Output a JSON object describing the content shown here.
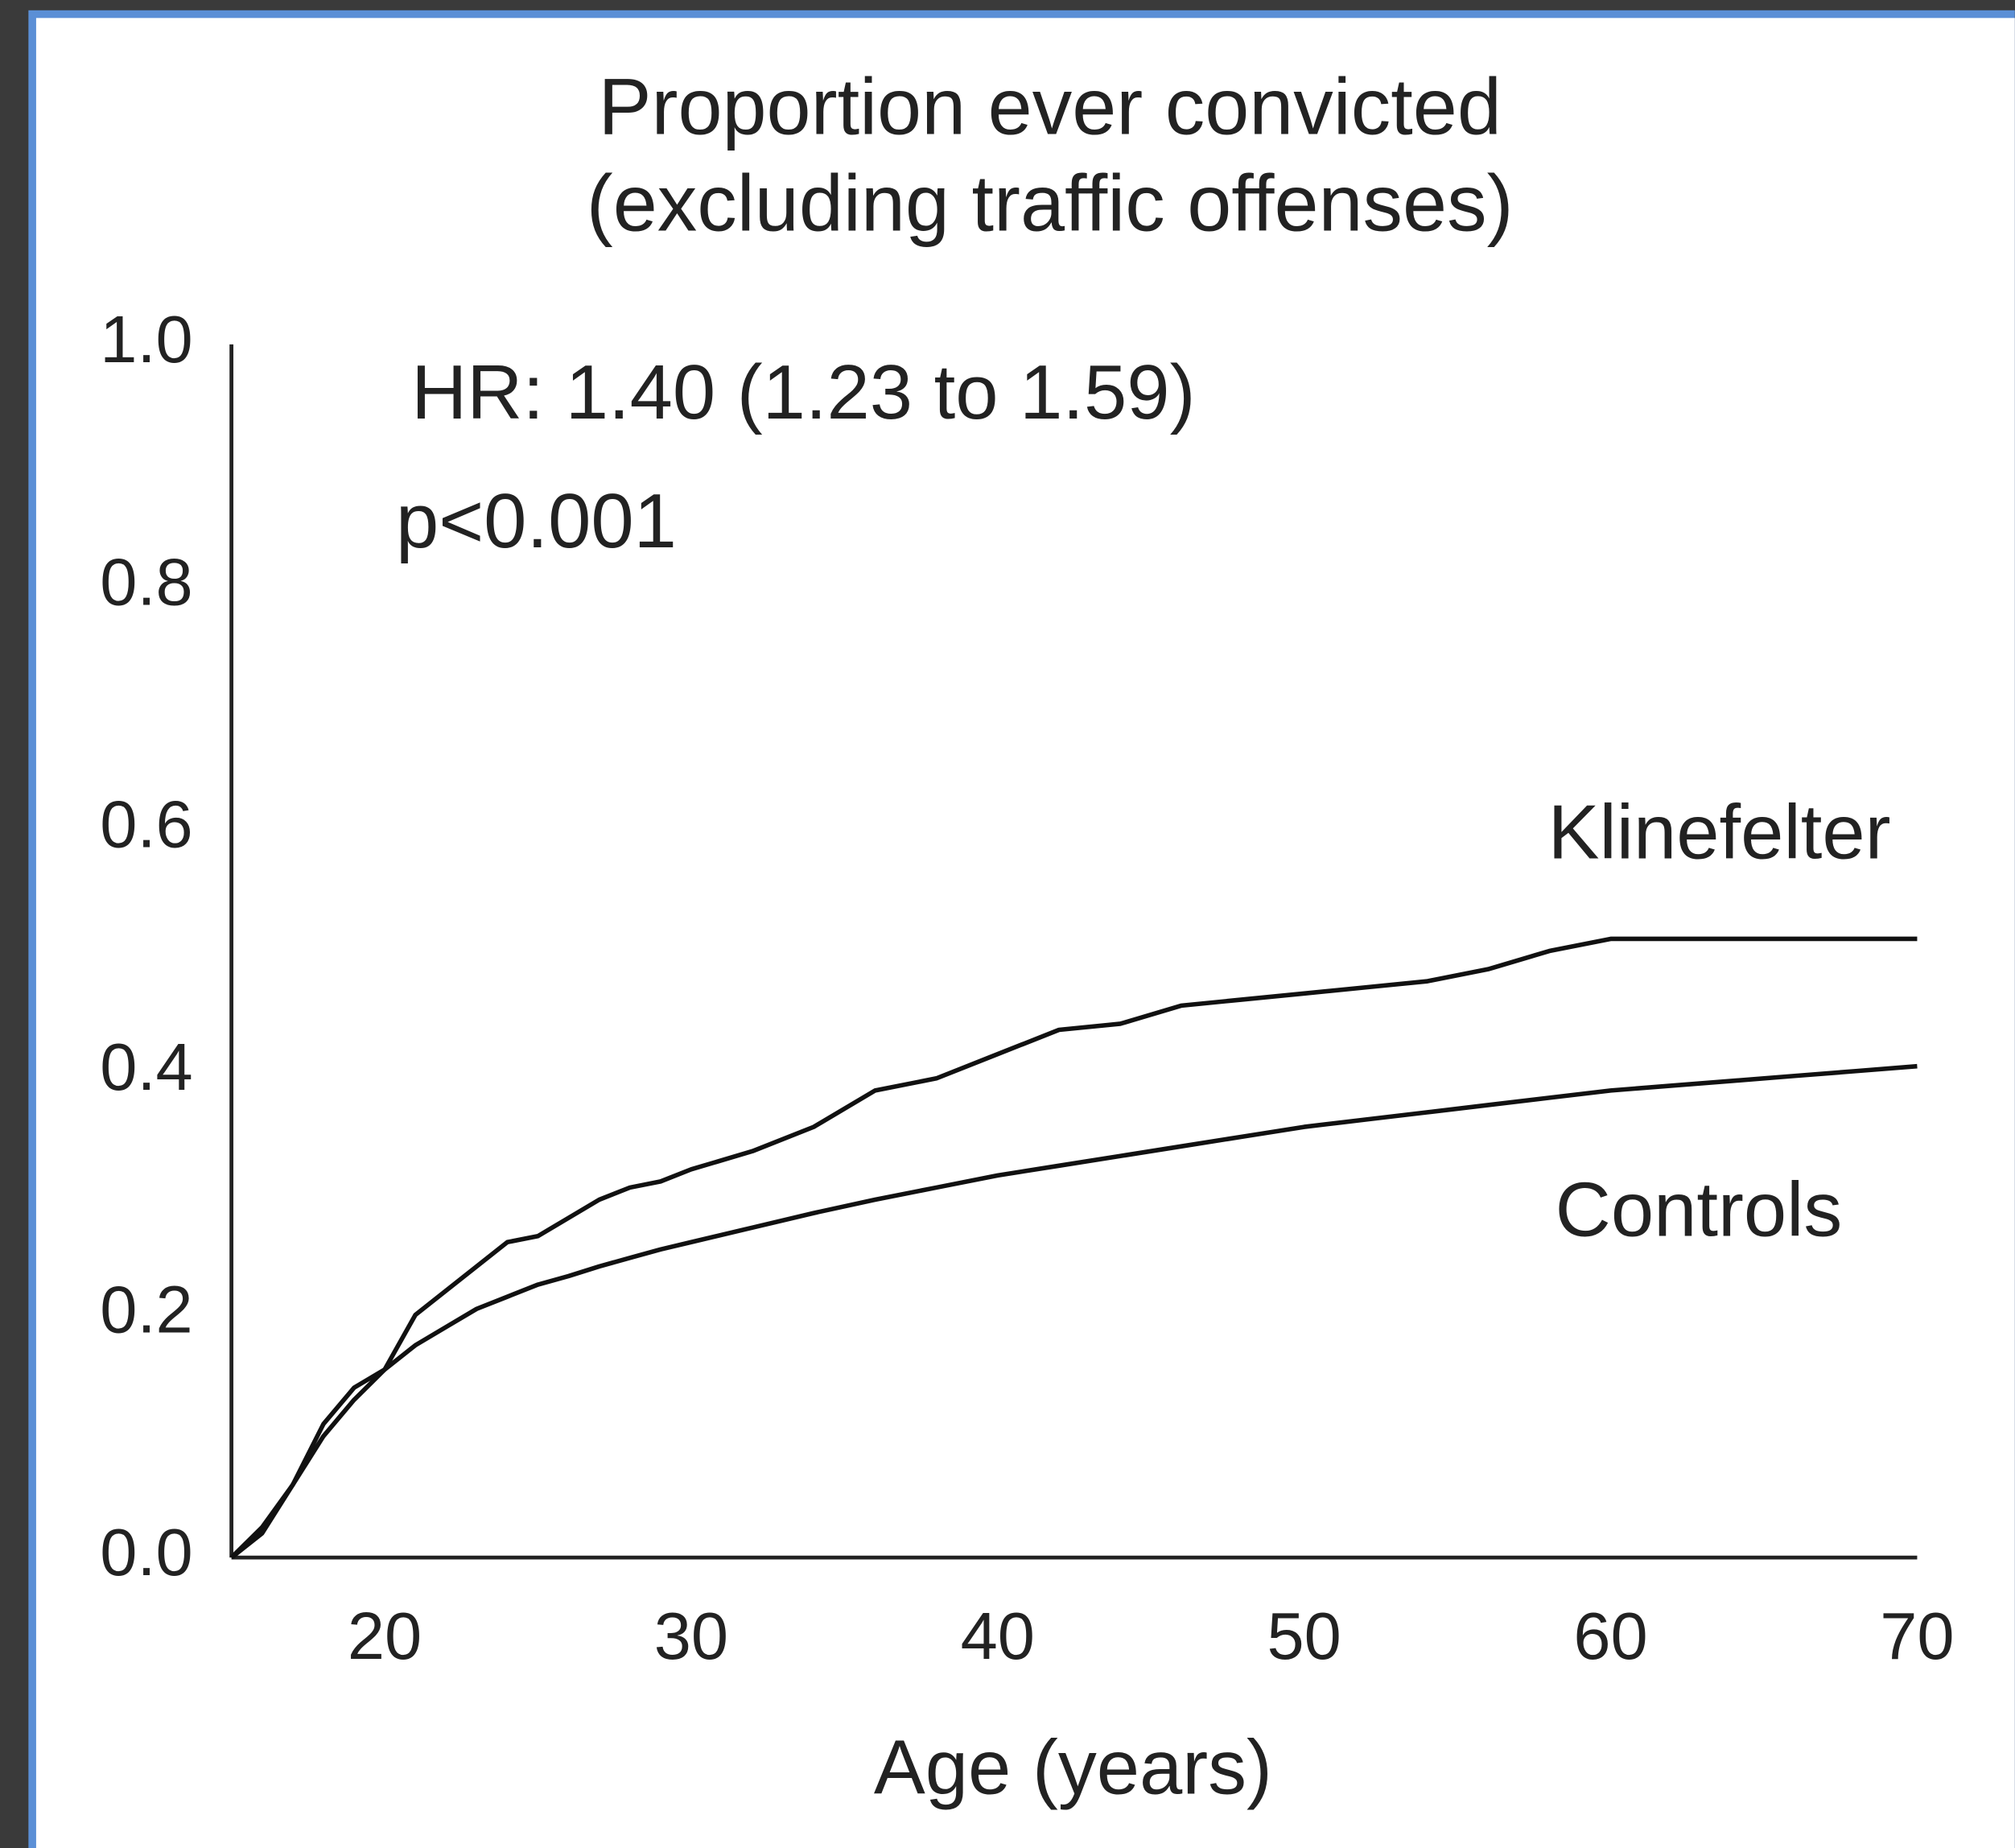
{
  "chart_data": {
    "type": "line",
    "title": [
      "Proportion ever convicted",
      "(excluding traffic offenses)"
    ],
    "xlabel": "Age (years)",
    "annotations": [
      "HR: 1.40 (1.23 to 1.59)",
      "p<0.001"
    ],
    "x": [
      15,
      16,
      17,
      18,
      19,
      20,
      21,
      22,
      23,
      24,
      25,
      26,
      27,
      28,
      29,
      30,
      32,
      34,
      36,
      38,
      40,
      42,
      44,
      46,
      48,
      50,
      52,
      54,
      56,
      58,
      60,
      62,
      64,
      66,
      68,
      70
    ],
    "series": [
      {
        "name": "Klinefelter",
        "color": "#111111",
        "values": [
          0,
          0.02,
          0.06,
          0.11,
          0.14,
          0.155,
          0.2,
          0.22,
          0.24,
          0.26,
          0.265,
          0.28,
          0.295,
          0.305,
          0.31,
          0.32,
          0.335,
          0.355,
          0.385,
          0.395,
          0.415,
          0.435,
          0.44,
          0.455,
          0.46,
          0.465,
          0.47,
          0.475,
          0.485,
          0.5,
          0.51,
          0.51,
          0.51,
          0.51,
          0.51,
          0.51
        ]
      },
      {
        "name": "Controls",
        "color": "#111111",
        "values": [
          0,
          0.025,
          0.06,
          0.1,
          0.13,
          0.155,
          0.175,
          0.19,
          0.205,
          0.215,
          0.225,
          0.232,
          0.24,
          0.247,
          0.254,
          0.26,
          0.272,
          0.284,
          0.295,
          0.305,
          0.315,
          0.323,
          0.331,
          0.339,
          0.347,
          0.355,
          0.361,
          0.367,
          0.373,
          0.379,
          0.385,
          0.389,
          0.393,
          0.397,
          0.401,
          0.405
        ]
      }
    ],
    "xlim": [
      15,
      70
    ],
    "xticks": [
      20,
      30,
      40,
      50,
      60,
      70
    ],
    "ylim": [
      0,
      1
    ],
    "yticks": [
      {
        "value": 0,
        "label": "0.0"
      },
      0.2,
      0.4,
      0.6,
      0.8,
      {
        "value": 1,
        "label": "1.0"
      }
    ],
    "grid": false
  }
}
